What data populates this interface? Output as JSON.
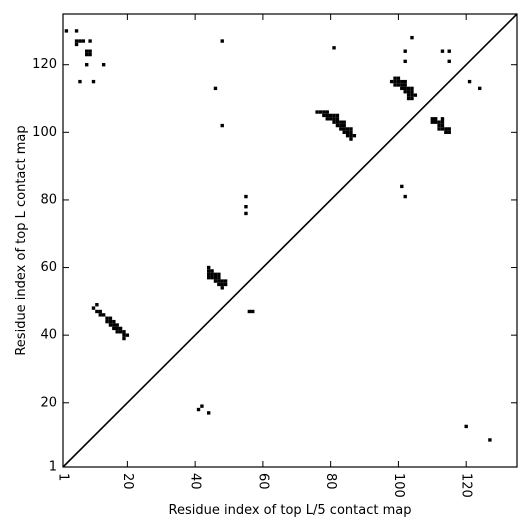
{
  "chart_data": {
    "type": "heatmap",
    "xlabel": "Residue index of top L/5 contact map",
    "ylabel": "Residue index of top L contact map",
    "xlim": [
      1,
      135
    ],
    "ylim": [
      1,
      135
    ],
    "x_ticks": [
      {
        "value": 1,
        "label": "1"
      },
      {
        "value": 20,
        "label": "20"
      },
      {
        "value": 40,
        "label": "40"
      },
      {
        "value": 60,
        "label": "60"
      },
      {
        "value": 80,
        "label": "80"
      },
      {
        "value": 100,
        "label": "100"
      },
      {
        "value": 120,
        "label": "120"
      }
    ],
    "y_ticks": [
      {
        "value": 1,
        "label": "1"
      },
      {
        "value": 20,
        "label": "20"
      },
      {
        "value": 40,
        "label": "40"
      },
      {
        "value": 60,
        "label": "60"
      },
      {
        "value": 80,
        "label": "80"
      },
      {
        "value": 100,
        "label": "100"
      },
      {
        "value": 120,
        "label": "120"
      }
    ],
    "diagonal": true,
    "color": "#000000",
    "top_L_contacts": [
      [
        2,
        130
      ],
      [
        5,
        130
      ],
      [
        5,
        127
      ],
      [
        5,
        126
      ],
      [
        6,
        127
      ],
      [
        7,
        127
      ],
      [
        9,
        127
      ],
      [
        8,
        124
      ],
      [
        9,
        124
      ],
      [
        8,
        123
      ],
      [
        9,
        123
      ],
      [
        8,
        120
      ],
      [
        13,
        120
      ],
      [
        6,
        115
      ],
      [
        10,
        115
      ],
      [
        46,
        113
      ],
      [
        48,
        127
      ],
      [
        48,
        102
      ],
      [
        81,
        125
      ],
      [
        102,
        124
      ],
      [
        102,
        121
      ],
      [
        104,
        128
      ],
      [
        113,
        124
      ],
      [
        115,
        124
      ],
      [
        115,
        121
      ],
      [
        121,
        115
      ],
      [
        124,
        113
      ],
      [
        55,
        81
      ],
      [
        55,
        78
      ],
      [
        55,
        76
      ],
      [
        101,
        84
      ],
      [
        102,
        81
      ],
      [
        10,
        48
      ],
      [
        11,
        49
      ],
      [
        11,
        47
      ],
      [
        12,
        47
      ],
      [
        12,
        46
      ],
      [
        13,
        46
      ],
      [
        14,
        45
      ],
      [
        14,
        44
      ],
      [
        15,
        45
      ],
      [
        15,
        44
      ],
      [
        15,
        43
      ],
      [
        16,
        44
      ],
      [
        16,
        43
      ],
      [
        16,
        42
      ],
      [
        17,
        43
      ],
      [
        17,
        42
      ],
      [
        17,
        41
      ],
      [
        18,
        42
      ],
      [
        18,
        41
      ],
      [
        19,
        41
      ],
      [
        19,
        40
      ],
      [
        19,
        39
      ],
      [
        20,
        40
      ],
      [
        44,
        60
      ],
      [
        44,
        59
      ],
      [
        44,
        58
      ],
      [
        44,
        57
      ],
      [
        45,
        59
      ],
      [
        45,
        58
      ],
      [
        45,
        57
      ],
      [
        46,
        58
      ],
      [
        46,
        57
      ],
      [
        46,
        56
      ],
      [
        47,
        58
      ],
      [
        47,
        57
      ],
      [
        47,
        56
      ],
      [
        47,
        55
      ],
      [
        48,
        56
      ],
      [
        48,
        55
      ],
      [
        48,
        54
      ],
      [
        49,
        56
      ],
      [
        49,
        55
      ],
      [
        56,
        47
      ],
      [
        57,
        47
      ],
      [
        76,
        106
      ],
      [
        77,
        106
      ],
      [
        78,
        106
      ],
      [
        78,
        105
      ],
      [
        79,
        106
      ],
      [
        79,
        105
      ],
      [
        79,
        104
      ],
      [
        80,
        105
      ],
      [
        80,
        104
      ],
      [
        81,
        105
      ],
      [
        81,
        104
      ],
      [
        81,
        103
      ],
      [
        82,
        105
      ],
      [
        82,
        104
      ],
      [
        82,
        103
      ],
      [
        82,
        102
      ],
      [
        83,
        103
      ],
      [
        83,
        102
      ],
      [
        83,
        101
      ],
      [
        84,
        103
      ],
      [
        84,
        102
      ],
      [
        84,
        101
      ],
      [
        84,
        100
      ],
      [
        85,
        101
      ],
      [
        85,
        100
      ],
      [
        85,
        99
      ],
      [
        86,
        101
      ],
      [
        86,
        100
      ],
      [
        86,
        99
      ],
      [
        86,
        98
      ],
      [
        87,
        99
      ],
      [
        98,
        115
      ],
      [
        99,
        116
      ],
      [
        99,
        115
      ],
      [
        99,
        114
      ],
      [
        100,
        116
      ],
      [
        100,
        115
      ],
      [
        100,
        114
      ],
      [
        101,
        115
      ],
      [
        101,
        114
      ],
      [
        101,
        113
      ],
      [
        102,
        115
      ],
      [
        102,
        114
      ],
      [
        102,
        113
      ],
      [
        102,
        112
      ],
      [
        103,
        113
      ],
      [
        103,
        112
      ],
      [
        103,
        111
      ],
      [
        103,
        110
      ],
      [
        104,
        113
      ],
      [
        104,
        112
      ],
      [
        104,
        111
      ],
      [
        104,
        110
      ],
      [
        105,
        111
      ],
      [
        110,
        104
      ],
      [
        110,
        103
      ],
      [
        111,
        104
      ],
      [
        111,
        103
      ],
      [
        112,
        103
      ],
      [
        112,
        102
      ],
      [
        112,
        101
      ],
      [
        113,
        104
      ],
      [
        113,
        103
      ],
      [
        113,
        102
      ],
      [
        113,
        101
      ],
      [
        114,
        101
      ],
      [
        114,
        100
      ],
      [
        115,
        101
      ],
      [
        115,
        100
      ],
      [
        41,
        18
      ],
      [
        42,
        19
      ],
      [
        44,
        17
      ],
      [
        120,
        13
      ],
      [
        127,
        9
      ]
    ]
  }
}
